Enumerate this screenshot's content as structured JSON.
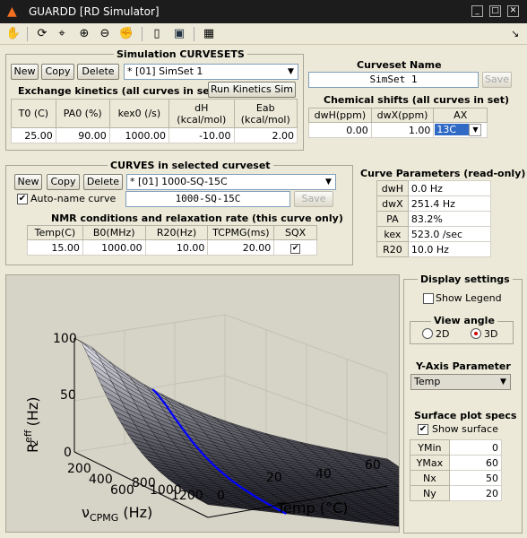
{
  "window": {
    "title": "GUARDD [RD Simulator]"
  },
  "curvesets": {
    "title": "Simulation CURVESETS",
    "new_label": "New",
    "copy_label": "Copy",
    "delete_label": "Delete",
    "selected": "* [01] SimSet 1",
    "kinetics_title": "Exchange kinetics (all curves in set)",
    "run_label": "Run Kinetics Sim",
    "kinetics_headers": [
      "T0 (C)",
      "PA0 (%)",
      "kex0 (/s)",
      "dH (kcal/mol)",
      "Eab (kcal/mol)"
    ],
    "kinetics_values": [
      "25.00",
      "90.00",
      "1000.00",
      "-10.00",
      "2.00"
    ]
  },
  "curveset_name": {
    "title": "Curveset Name",
    "value": "SimSet 1",
    "save_label": "Save"
  },
  "chem_shifts": {
    "title": "Chemical shifts (all curves in set)",
    "headers": [
      "dwH(ppm)",
      "dwX(ppm)",
      "AX"
    ],
    "values": [
      "0.00",
      "1.00",
      "13C"
    ]
  },
  "curves": {
    "title": "CURVES in selected curveset",
    "new_label": "New",
    "copy_label": "Copy",
    "delete_label": "Delete",
    "selected": "* [01] 1000-SQ-15C",
    "autoname_label": "Auto-name curve",
    "name_value": "1000-SQ-15C",
    "save_label": "Save",
    "nmr_title": "NMR conditions and relaxation rate (this curve only)",
    "nmr_headers": [
      "Temp(C)",
      "B0(MHz)",
      "R20(Hz)",
      "TCPMG(ms)",
      "SQX"
    ],
    "nmr_values": [
      "15.00",
      "1000.00",
      "10.00",
      "20.00"
    ],
    "sqx_checked": true
  },
  "curve_params": {
    "title": "Curve Parameters (read-only)",
    "rows": [
      {
        "name": "dwH",
        "value": "0.0 Hz"
      },
      {
        "name": "dwX",
        "value": "251.4 Hz"
      },
      {
        "name": "PA",
        "value": "83.2%"
      },
      {
        "name": "kex",
        "value": "523.0 /sec"
      },
      {
        "name": "R20",
        "value": "10.0 Hz"
      }
    ]
  },
  "display": {
    "title": "Display settings",
    "show_legend_label": "Show Legend",
    "view_angle_title": "View angle",
    "view_2d": "2D",
    "view_3d": "3D",
    "selected_view": "3D",
    "yaxis_title": "Y-Axis Parameter",
    "yaxis_value": "Temp",
    "surface_title": "Surface plot specs",
    "show_surface_label": "Show surface",
    "specs": [
      {
        "name": "YMin",
        "value": "0"
      },
      {
        "name": "YMax",
        "value": "60"
      },
      {
        "name": "Nx",
        "value": "50"
      },
      {
        "name": "Ny",
        "value": "20"
      }
    ]
  },
  "plot": {
    "z_ticks": [
      "100",
      "50",
      "0"
    ],
    "x_ticks": [
      "200",
      "400",
      "600",
      "800",
      "1000",
      "1200"
    ],
    "y_ticks": [
      "0",
      "20",
      "40",
      "60"
    ],
    "z_label_main": "R",
    "z_label_sup": "eff",
    "z_label_sub": "2",
    "z_label_unit": " (Hz)",
    "x_label_main": "ν",
    "x_label_sub": "CPMG",
    "x_label_unit": " (Hz)",
    "y_label": "Temp (°C)",
    "curve_color": "#0000ff"
  },
  "chart_data": {
    "type": "surface",
    "x": [
      50,
      1250
    ],
    "y": [
      0,
      60
    ],
    "ylim": [
      0,
      60
    ],
    "zlim": [
      0,
      100
    ],
    "xlabel": "νCPMG (Hz)",
    "ylabel": "Temp (°C)",
    "zlabel": "R2eff (Hz)",
    "series": [
      {
        "name": "",
        "x": [
          50,
          200,
          400,
          600,
          800,
          1000,
          1200
        ],
        "y": [
          15,
          15,
          15,
          15,
          15,
          15,
          15
        ],
        "z": [
          95,
          78,
          48,
          30,
          20,
          15,
          12
        ]
      }
    ]
  }
}
